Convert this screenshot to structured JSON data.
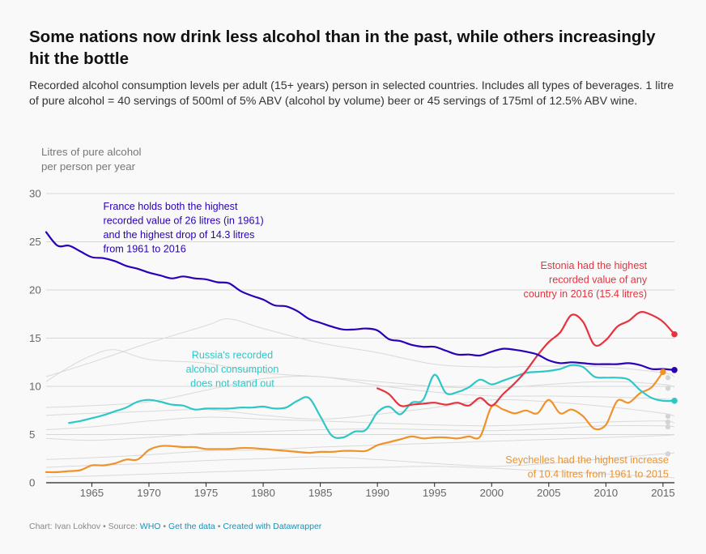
{
  "title": "Some nations now drink less alcohol than in the past, while others increasingly hit the bottle",
  "subtitle": "Recorded alcohol consumption levels per adult (15+ years) person in selected countries. Includes all types of beverages. 1 litre of pure alcohol = 40 servings of 500ml of 5% ABV (alcohol by volume) beer or 45 servings of 175ml of 12.5% ABV wine.",
  "footer": {
    "chart_by": "Chart: Ivan Lokhov",
    "source_label": "Source:",
    "source_link": "WHO",
    "get_data": "Get the data",
    "created_with": "Created with Datawrapper",
    "separator": "•"
  },
  "colors": {
    "france": "#2a00b8",
    "estonia": "#e5333f",
    "russia": "#2ec7c7",
    "seychelles": "#f0922a",
    "background_lines": "#d9d9d9",
    "end_dots": "#d4d4d4",
    "gridline": "#d6d6d6",
    "axis": "#222222",
    "footer_link": "#1d8fb5"
  },
  "chart_data": {
    "type": "line",
    "ylabel": "Litres of pure alcohol per person per year",
    "ylabel_lines": [
      "Litres of pure alcohol",
      "per person per year"
    ],
    "xlim": [
      1961,
      2016
    ],
    "ylim": [
      0,
      30
    ],
    "yticks": [
      0,
      5,
      10,
      15,
      20,
      25,
      30
    ],
    "xticks": [
      1965,
      1970,
      1975,
      1980,
      1985,
      1990,
      1995,
      2000,
      2005,
      2010,
      2015
    ],
    "grid": true,
    "series": [
      {
        "name": "France",
        "highlight": true,
        "x": [
          1961,
          1962,
          1963,
          1964,
          1965,
          1966,
          1967,
          1968,
          1969,
          1970,
          1971,
          1972,
          1973,
          1974,
          1975,
          1976,
          1977,
          1978,
          1979,
          1980,
          1981,
          1982,
          1983,
          1984,
          1985,
          1986,
          1987,
          1988,
          1989,
          1990,
          1991,
          1992,
          1993,
          1994,
          1995,
          1996,
          1997,
          1998,
          1999,
          2000,
          2001,
          2002,
          2003,
          2004,
          2005,
          2006,
          2007,
          2008,
          2009,
          2010,
          2011,
          2012,
          2013,
          2014,
          2015,
          2016
        ],
        "y": [
          26.0,
          24.6,
          24.6,
          24.0,
          23.4,
          23.3,
          23.0,
          22.5,
          22.2,
          21.8,
          21.5,
          21.2,
          21.4,
          21.2,
          21.1,
          20.8,
          20.7,
          19.9,
          19.4,
          19.0,
          18.4,
          18.3,
          17.8,
          17.0,
          16.6,
          16.2,
          15.9,
          15.9,
          16.0,
          15.8,
          14.9,
          14.7,
          14.3,
          14.1,
          14.1,
          13.7,
          13.3,
          13.3,
          13.2,
          13.6,
          13.9,
          13.8,
          13.6,
          13.3,
          12.7,
          12.4,
          12.5,
          12.4,
          12.3,
          12.3,
          12.3,
          12.4,
          12.2,
          11.8,
          11.8,
          11.7
        ]
      },
      {
        "name": "Estonia",
        "highlight": true,
        "x": [
          1990,
          1991,
          1992,
          1993,
          1994,
          1995,
          1996,
          1997,
          1998,
          1999,
          2000,
          2001,
          2002,
          2003,
          2004,
          2005,
          2006,
          2007,
          2008,
          2009,
          2010,
          2011,
          2012,
          2013,
          2014,
          2015,
          2016
        ],
        "y": [
          9.8,
          9.2,
          8.0,
          8.1,
          8.2,
          8.3,
          8.1,
          8.3,
          8.0,
          8.8,
          8.0,
          9.2,
          10.3,
          11.6,
          13.2,
          14.6,
          15.6,
          17.4,
          16.7,
          14.3,
          14.8,
          16.2,
          16.8,
          17.7,
          17.4,
          16.7,
          15.4
        ]
      },
      {
        "name": "Russia",
        "highlight": true,
        "x": [
          1963,
          1964,
          1965,
          1966,
          1967,
          1968,
          1969,
          1970,
          1971,
          1972,
          1973,
          1974,
          1975,
          1976,
          1977,
          1978,
          1979,
          1980,
          1981,
          1982,
          1983,
          1984,
          1985,
          1986,
          1987,
          1988,
          1989,
          1990,
          1991,
          1992,
          1993,
          1994,
          1995,
          1996,
          1997,
          1998,
          1999,
          2000,
          2001,
          2002,
          2003,
          2004,
          2005,
          2006,
          2007,
          2008,
          2009,
          2010,
          2011,
          2012,
          2013,
          2014,
          2015,
          2016
        ],
        "y": [
          6.2,
          6.4,
          6.7,
          7.0,
          7.4,
          7.8,
          8.4,
          8.6,
          8.4,
          8.1,
          8.0,
          7.6,
          7.7,
          7.7,
          7.7,
          7.8,
          7.8,
          7.9,
          7.7,
          7.8,
          8.5,
          8.8,
          6.9,
          4.9,
          4.7,
          5.3,
          5.5,
          7.3,
          7.9,
          7.1,
          8.3,
          8.6,
          11.2,
          9.3,
          9.4,
          9.9,
          10.7,
          10.2,
          10.6,
          11.0,
          11.4,
          11.5,
          11.6,
          11.8,
          12.2,
          12.0,
          11.0,
          10.9,
          10.9,
          10.7,
          9.6,
          8.8,
          8.5,
          8.5
        ]
      },
      {
        "name": "Seychelles",
        "highlight": true,
        "x": [
          1961,
          1962,
          1963,
          1964,
          1965,
          1966,
          1967,
          1968,
          1969,
          1970,
          1971,
          1972,
          1973,
          1974,
          1975,
          1976,
          1977,
          1978,
          1979,
          1980,
          1981,
          1982,
          1983,
          1984,
          1985,
          1986,
          1987,
          1988,
          1989,
          1990,
          1991,
          1992,
          1993,
          1994,
          1995,
          1996,
          1997,
          1998,
          1999,
          2000,
          2001,
          2002,
          2003,
          2004,
          2005,
          2006,
          2007,
          2008,
          2009,
          2010,
          2011,
          2012,
          2013,
          2014,
          2015
        ],
        "y": [
          1.1,
          1.1,
          1.2,
          1.3,
          1.8,
          1.8,
          2.0,
          2.4,
          2.4,
          3.4,
          3.8,
          3.8,
          3.7,
          3.7,
          3.5,
          3.5,
          3.5,
          3.6,
          3.6,
          3.5,
          3.4,
          3.3,
          3.2,
          3.1,
          3.2,
          3.2,
          3.3,
          3.3,
          3.3,
          3.9,
          4.2,
          4.5,
          4.8,
          4.6,
          4.7,
          4.7,
          4.6,
          4.8,
          4.8,
          7.9,
          7.6,
          7.2,
          7.5,
          7.2,
          8.6,
          7.2,
          7.6,
          6.9,
          5.6,
          6.0,
          8.5,
          8.3,
          9.3,
          9.9,
          11.5
        ]
      },
      {
        "name": "",
        "highlight": false,
        "x": [
          1961,
          1965,
          1970,
          1975,
          1977,
          1980,
          1985,
          1990,
          1995,
          2000,
          2005,
          2010,
          2015,
          2016
        ],
        "y": [
          11.0,
          12.5,
          14.5,
          16.3,
          17.0,
          16.0,
          14.5,
          13.5,
          12.3,
          12.0,
          12.1,
          12.0,
          11.4,
          11.0
        ]
      },
      {
        "name": "",
        "highlight": false,
        "x": [
          1961,
          1963,
          1965,
          1967,
          1970,
          1975,
          1980,
          1985,
          1990,
          1995,
          2000,
          2005,
          2010,
          2015,
          2016
        ],
        "y": [
          10.5,
          12.0,
          13.2,
          13.8,
          12.8,
          12.4,
          11.4,
          11.0,
          10.5,
          10.0,
          9.8,
          10.2,
          10.5,
          10.2,
          9.9
        ]
      },
      {
        "name": "",
        "highlight": false,
        "x": [
          1961,
          1965,
          1970,
          1975,
          1980,
          1985,
          1990,
          1995,
          2000,
          2005,
          2010,
          2015,
          2016
        ],
        "y": [
          7.8,
          8.0,
          8.4,
          9.6,
          10.8,
          11.0,
          10.1,
          9.4,
          9.0,
          9.0,
          8.9,
          8.7,
          8.5
        ]
      },
      {
        "name": "",
        "highlight": false,
        "x": [
          1961,
          1965,
          1970,
          1975,
          1980,
          1985,
          1990,
          1995,
          2000,
          2005,
          2010,
          2015,
          2016
        ],
        "y": [
          7.0,
          7.2,
          7.4,
          7.6,
          7.0,
          6.6,
          7.1,
          7.8,
          8.6,
          8.4,
          7.9,
          7.2,
          6.9
        ]
      },
      {
        "name": "",
        "highlight": false,
        "x": [
          1961,
          1965,
          1970,
          1975,
          1980,
          1985,
          1990,
          1995,
          2000,
          2005,
          2010,
          2015,
          2016
        ],
        "y": [
          5.5,
          5.8,
          6.4,
          6.8,
          6.6,
          6.4,
          6.2,
          6.0,
          5.9,
          6.1,
          6.3,
          6.4,
          6.2
        ]
      },
      {
        "name": "",
        "highlight": false,
        "x": [
          1961,
          1965,
          1970,
          1975,
          1980,
          1985,
          1990,
          1995,
          2000,
          2005,
          2010,
          2015,
          2016
        ],
        "y": [
          4.6,
          4.4,
          4.7,
          5.1,
          5.3,
          5.5,
          5.6,
          5.5,
          5.4,
          5.6,
          5.9,
          5.9,
          5.8
        ]
      },
      {
        "name": "",
        "highlight": false,
        "x": [
          1961,
          1965,
          1970,
          1975,
          1980,
          1985,
          1990,
          1995,
          2000,
          2005,
          2010,
          2015,
          2016
        ],
        "y": [
          2.4,
          2.6,
          2.9,
          3.3,
          3.4,
          3.7,
          3.9,
          4.1,
          4.3,
          4.5,
          4.7,
          4.9,
          5.0
        ]
      },
      {
        "name": "",
        "highlight": false,
        "x": [
          1961,
          1965,
          1970,
          1975,
          1980,
          1985,
          1990,
          1995,
          2000,
          2005,
          2010,
          2015,
          2016
        ],
        "y": [
          1.6,
          1.8,
          2.0,
          2.3,
          2.5,
          2.7,
          2.4,
          2.0,
          1.7,
          2.0,
          2.5,
          3.0,
          3.1
        ]
      },
      {
        "name": "",
        "highlight": false,
        "x": [
          1961,
          1965,
          1970,
          1975,
          1980,
          1985,
          1990,
          1995,
          2000,
          2005,
          2010,
          2015,
          2016
        ],
        "y": [
          0.6,
          0.7,
          0.9,
          1.1,
          1.3,
          1.5,
          1.6,
          1.7,
          1.5,
          1.2,
          0.9,
          0.6,
          0.5
        ]
      }
    ],
    "end_dots_gray": [
      10.9,
      9.8,
      6.9,
      6.3,
      5.8,
      3.0
    ],
    "annotations": [
      {
        "name": "france-annotation",
        "series": "France",
        "align": "left",
        "x": 1966,
        "y": 28.3,
        "lines": [
          "France holds both the highest",
          "recorded value of 26 litres (in 1961)",
          "and the highest drop of 14.3 litres",
          "from 1961 to 2016"
        ]
      },
      {
        "name": "estonia-annotation",
        "series": "Estonia",
        "align": "right",
        "x": 2013.6,
        "y": 22.2,
        "lines": [
          "Estonia had the highest",
          "recorded value of any",
          "country in 2016 (15.4 litres)"
        ]
      },
      {
        "name": "russia-annotation",
        "series": "Russia",
        "align": "center",
        "x": 1977.3,
        "y": 12.9,
        "lines": [
          "Russia's recorded",
          "alcohol consumption",
          "does not stand out"
        ]
      },
      {
        "name": "seychelles-annotation",
        "series": "Seychelles",
        "align": "right",
        "x": 2015.5,
        "y": 2.0,
        "lines": [
          "Seychelles had the highest increase",
          "of 10.4 litres from 1961 to 2015"
        ]
      }
    ]
  }
}
